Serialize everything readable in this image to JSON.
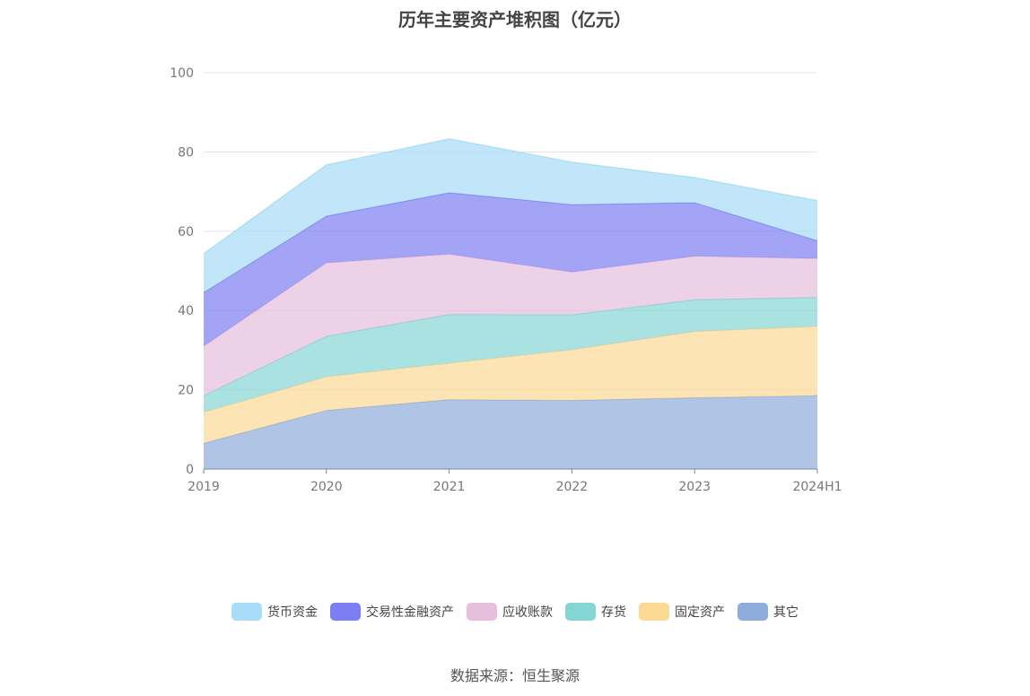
{
  "chart_data": {
    "type": "area",
    "title": "历年主要资产堆积图（亿元）",
    "categories": [
      "2019",
      "2020",
      "2021",
      "2022",
      "2023",
      "2024H1"
    ],
    "ylim": [
      0,
      100
    ],
    "yticks": [
      0,
      20,
      40,
      60,
      80,
      100
    ],
    "stacked": true,
    "grid": true,
    "series": [
      {
        "name": "其它",
        "color": "#8eaddc",
        "values": [
          6.5,
          14.8,
          17.5,
          17.3,
          18.0,
          18.5
        ]
      },
      {
        "name": "固定资产",
        "color": "#fcd995",
        "values": [
          7.8,
          8.5,
          9.2,
          12.8,
          16.7,
          17.5
        ]
      },
      {
        "name": "存货",
        "color": "#86d5d5",
        "values": [
          4.2,
          10.2,
          12.3,
          8.8,
          8.0,
          7.3
        ]
      },
      {
        "name": "应收账款",
        "color": "#e6bfdd",
        "values": [
          12.5,
          18.5,
          15.2,
          10.8,
          11.0,
          9.8
        ]
      },
      {
        "name": "交易性金融资产",
        "color": "#7c7ef2",
        "values": [
          13.5,
          11.8,
          15.5,
          17.0,
          13.5,
          4.5
        ]
      },
      {
        "name": "货币资金",
        "color": "#a8dcf7",
        "values": [
          9.8,
          12.9,
          13.6,
          10.7,
          6.3,
          10.1
        ]
      }
    ],
    "legend_order": [
      "货币资金",
      "交易性金融资产",
      "应收账款",
      "存货",
      "固定资产",
      "其它"
    ],
    "legend_position": "bottom"
  },
  "source": "数据来源：恒生聚源"
}
